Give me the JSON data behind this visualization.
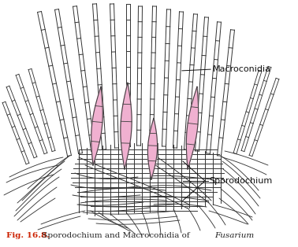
{
  "bg_color": "#ffffff",
  "fig_width": 3.78,
  "fig_height": 3.14,
  "dpi": 100,
  "caption_bold": "Fig. 16.8.",
  "caption_normal": " Sporodochium and Macroconidia of ",
  "caption_italic": "Fusarium",
  "caption_end": ".",
  "caption_color_bold": "#cc2200",
  "caption_color_normal": "#222222",
  "caption_fontsize": 7.5,
  "label_macroconidia": "Macroconidia",
  "label_sporodochium": "Sporodochium",
  "label_fontsize": 8,
  "label_color": "#111111",
  "drawing_color": "#333333",
  "macroconidia_fill": "#f0b0d0",
  "macroconidia_edge": "#444444",
  "line_width": 0.7
}
